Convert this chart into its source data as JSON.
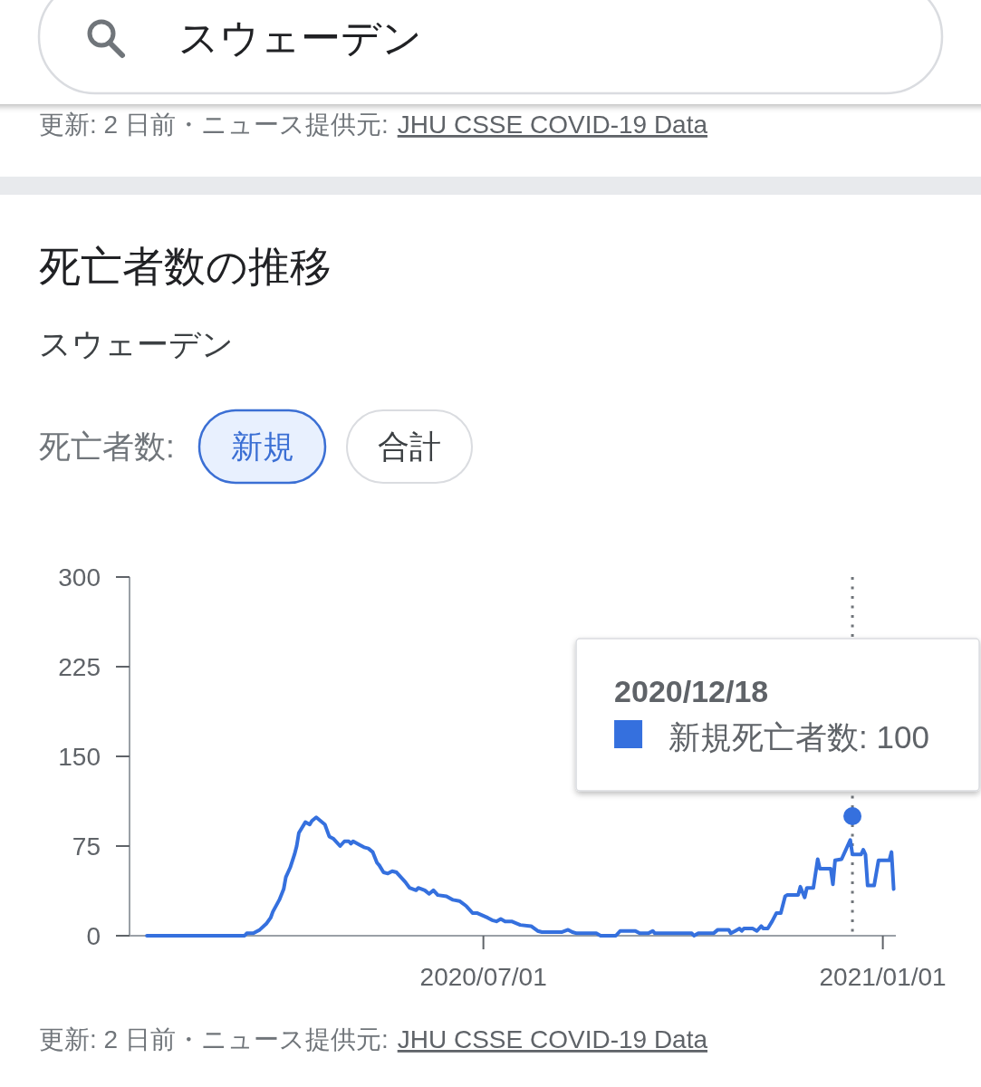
{
  "chart_data": {
    "type": "line",
    "title": "死亡者数の推移",
    "subtitle": "スウェーデン",
    "series": [
      {
        "color": "#3570de",
        "x": [
          "2020-01-28",
          "2020-03-13",
          "2020-03-14",
          "2020-03-17",
          "2020-03-20",
          "2020-03-23",
          "2020-03-25",
          "2020-03-26",
          "2020-03-29",
          "2020-03-31",
          "2020-04-01",
          "2020-04-03",
          "2020-04-05",
          "2020-04-06",
          "2020-04-07",
          "2020-04-08",
          "2020-04-10",
          "2020-04-12",
          "2020-04-13",
          "2020-04-15",
          "2020-04-17",
          "2020-04-19",
          "2020-04-21",
          "2020-04-23",
          "2020-04-26",
          "2020-04-28",
          "2020-04-30",
          "2020-05-01",
          "2020-05-02",
          "2020-05-05",
          "2020-05-07",
          "2020-05-09",
          "2020-05-11",
          "2020-05-13",
          "2020-05-14",
          "2020-05-16",
          "2020-05-18",
          "2020-05-20",
          "2020-05-22",
          "2020-05-26",
          "2020-05-28",
          "2020-05-31",
          "2020-06-01",
          "2020-06-04",
          "2020-06-06",
          "2020-06-08",
          "2020-06-10",
          "2020-06-14",
          "2020-06-17",
          "2020-06-20",
          "2020-06-23",
          "2020-06-26",
          "2020-06-28",
          "2020-07-03",
          "2020-07-05",
          "2020-07-07",
          "2020-07-09",
          "2020-07-11",
          "2020-07-14",
          "2020-07-18",
          "2020-07-23",
          "2020-07-26",
          "2020-07-28",
          "2020-08-06",
          "2020-08-09",
          "2020-08-11",
          "2020-08-13",
          "2020-08-22",
          "2020-08-24",
          "2020-08-31",
          "2020-09-02",
          "2020-09-09",
          "2020-09-11",
          "2020-09-15",
          "2020-09-17",
          "2020-09-18",
          "2020-10-05",
          "2020-10-06",
          "2020-10-08",
          "2020-10-15",
          "2020-10-17",
          "2020-10-22",
          "2020-10-23",
          "2020-10-25",
          "2020-10-27",
          "2020-10-28",
          "2020-10-29",
          "2020-11-02",
          "2020-11-04",
          "2020-11-06",
          "2020-11-07",
          "2020-11-09",
          "2020-11-11",
          "2020-11-13",
          "2020-11-15",
          "2020-11-17",
          "2020-11-18",
          "2020-11-23",
          "2020-11-24",
          "2020-11-26",
          "2020-11-27",
          "2020-11-30",
          "2020-12-02",
          "2020-12-03",
          "2020-12-08",
          "2020-12-09",
          "2020-12-10",
          "2020-12-13",
          "2020-12-17",
          "2020-12-18",
          "2020-12-22",
          "2020-12-23",
          "2020-12-24",
          "2020-12-25",
          "2020-12-28",
          "2020-12-30",
          "2021-01-04",
          "2021-01-05",
          "2021-01-06"
        ],
        "values": [
          0,
          0,
          2,
          2,
          5,
          10,
          15,
          20,
          30,
          39,
          49,
          57,
          68,
          75,
          86,
          89,
          95,
          93,
          96,
          99,
          96,
          93,
          83,
          81,
          75,
          79,
          79,
          77,
          79,
          76,
          74,
          73,
          70,
          61,
          59,
          53,
          52,
          54,
          53,
          45,
          40,
          38,
          40,
          38,
          35,
          38,
          34,
          33,
          30,
          29,
          25,
          19,
          19,
          15,
          13,
          12,
          14,
          12,
          12,
          9,
          8,
          4,
          3,
          3,
          5,
          3,
          2,
          2,
          0,
          0,
          4,
          4,
          2,
          2,
          4,
          2,
          2,
          0,
          2,
          2,
          5,
          5,
          2,
          4,
          6,
          4,
          6,
          6,
          4,
          8,
          6,
          6,
          12,
          19,
          19,
          33,
          34,
          34,
          41,
          32,
          40,
          40,
          64,
          56,
          56,
          43,
          63,
          64,
          80,
          68,
          68,
          72,
          68,
          42,
          42,
          63,
          63,
          70,
          39
        ]
      },
      {
        "type": "scatter",
        "color": "#3570de",
        "x": [
          "2020-12-18"
        ],
        "values": [
          100
        ]
      }
    ],
    "xlim": [
      "2020-01-20",
      "2021-01-07"
    ],
    "xticks": [
      {
        "value": "2020-07-01",
        "label": "2020/07/01"
      },
      {
        "value": "2021-01-01",
        "label": "2021/01/01"
      }
    ],
    "ylim": [
      0,
      300
    ],
    "yticks": [
      0,
      75,
      150,
      225,
      300
    ],
    "ref_lines": [
      {
        "axis": "x",
        "value": "2020-12-18",
        "line_style": "dotted",
        "color": "#70757a"
      }
    ],
    "annotations": [
      "スウェーデン",
      "更新: 2 日前・ニュース提供元:",
      "JHU CSSE COVID-19 Data",
      "死亡者数:",
      "新規",
      "合計",
      "2020/12/18",
      "新規死亡者数: 100",
      "更新: 2 日前・ニュース提供元:",
      "JHU CSSE COVID-19 Data"
    ]
  }
}
